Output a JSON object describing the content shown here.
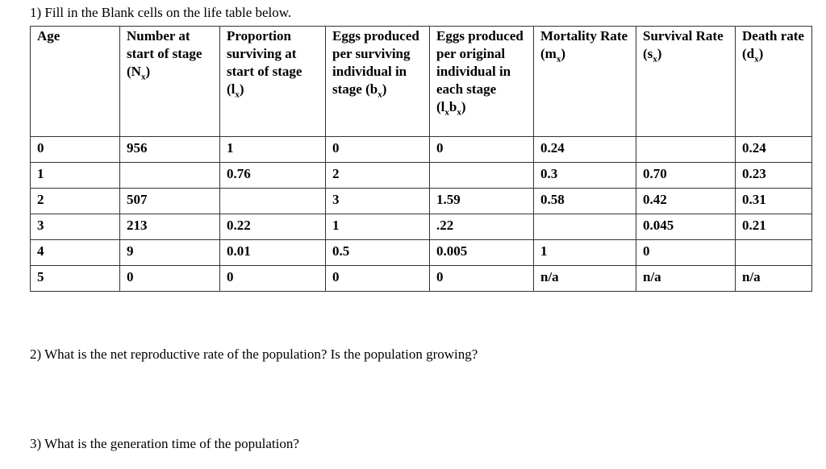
{
  "questions": [
    "1) Fill in the Blank cells on the life table below.",
    "2) What is the net reproductive rate of the population? Is the population growing?",
    "3) What is the generation time of the population?"
  ],
  "table": {
    "headers": [
      [
        "Age"
      ],
      [
        "Number at start of stage (N",
        "x",
        ")"
      ],
      [
        "Proportion surviving at start of stage (l",
        "x",
        ")"
      ],
      [
        "Eggs produced per surviving individual in stage (b",
        "x",
        ")"
      ],
      [
        "Eggs produced per original individual in each stage (l",
        "x",
        "b",
        "x",
        ")"
      ],
      [
        "Mortality Rate (m",
        "x",
        ")"
      ],
      [
        "Survival Rate (s",
        "x",
        ")"
      ],
      [
        "Death rate (d",
        "x",
        ")"
      ]
    ],
    "rows": [
      [
        "0",
        "956",
        "1",
        "0",
        "0",
        "0.24",
        null,
        "0.24"
      ],
      [
        "1",
        null,
        "0.76",
        "2",
        null,
        "0.3",
        "0.70",
        "0.23"
      ],
      [
        "2",
        "507",
        null,
        "3",
        "1.59",
        "0.58",
        "0.42",
        "0.31"
      ],
      [
        "3",
        "213",
        "0.22",
        "1",
        ".22",
        null,
        "0.045",
        "0.21"
      ],
      [
        "4",
        "9",
        "0.01",
        "0.5",
        "0.005",
        "1",
        "0",
        null
      ],
      [
        "5",
        "0",
        "0",
        "0",
        "0",
        "n/a",
        "n/a",
        "n/a"
      ]
    ]
  }
}
